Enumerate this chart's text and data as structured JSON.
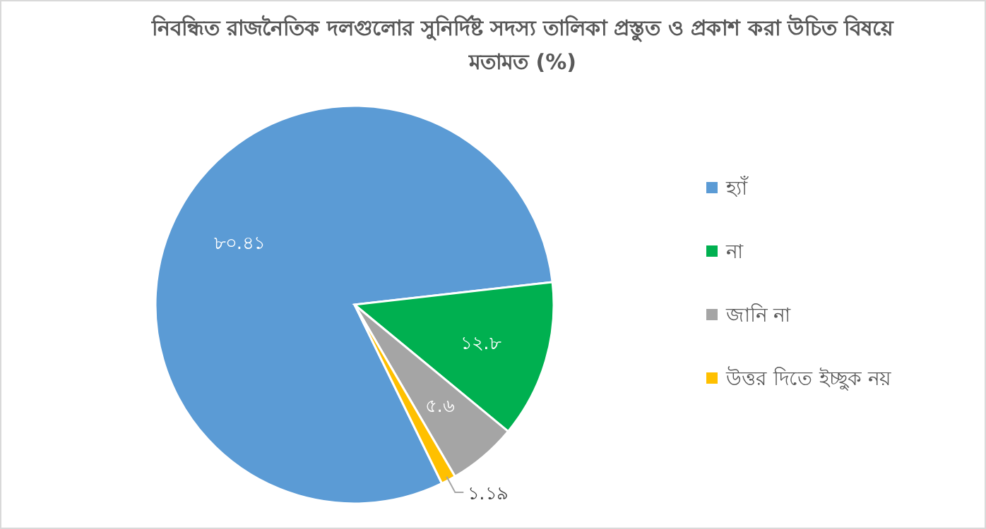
{
  "chart_data": {
    "type": "pie",
    "title": "নিবন্ধিত রাজনৈতিক দলগুলোর সুনির্দিষ্ট সদস্য তালিকা প্রস্তুত ও প্রকাশ করা উচিত বিষয়ে মতামত (%)",
    "categories": [
      "হ্যাঁ",
      "না",
      "জানি না",
      "উত্তর দিতে ইচ্ছুক নয়"
    ],
    "values": [
      80.41,
      12.8,
      5.6,
      1.19
    ],
    "colors": [
      "#5b9bd5",
      "#00b050",
      "#a5a5a5",
      "#ffc000"
    ],
    "value_labels": [
      "৮০.৪১",
      "১২.৮",
      "৫.৬",
      "১.১৯"
    ],
    "legend": "right"
  }
}
